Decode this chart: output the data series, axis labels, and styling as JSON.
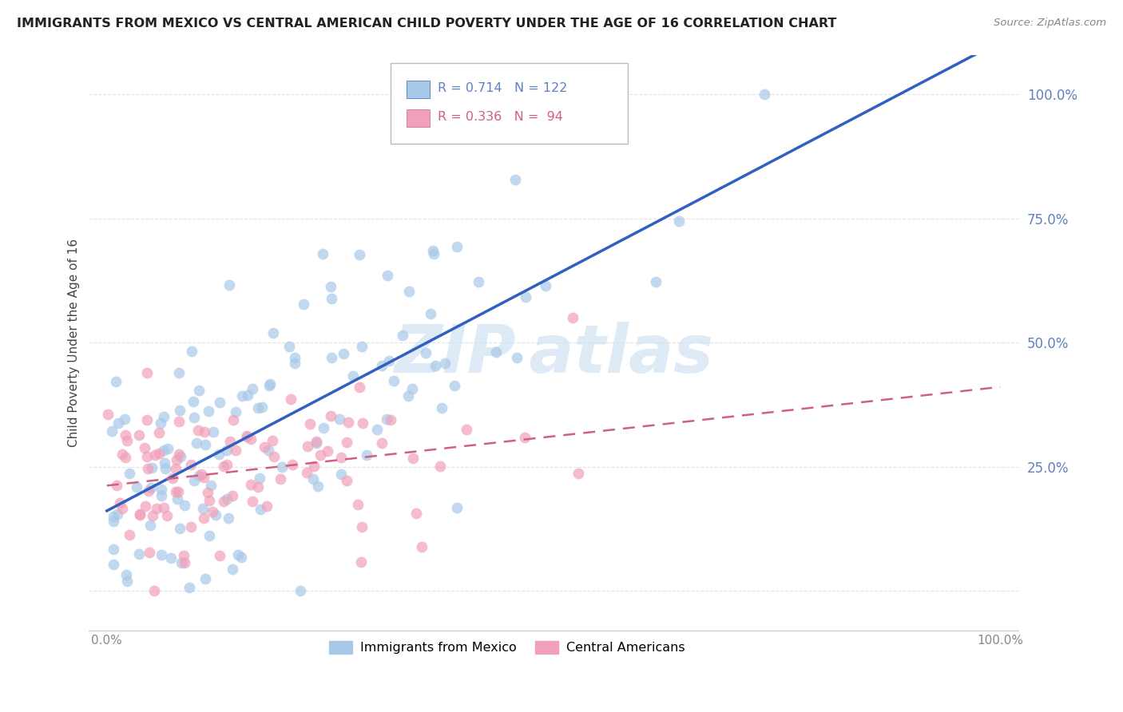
{
  "title": "IMMIGRANTS FROM MEXICO VS CENTRAL AMERICAN CHILD POVERTY UNDER THE AGE OF 16 CORRELATION CHART",
  "source": "Source: ZipAtlas.com",
  "ylabel": "Child Poverty Under the Age of 16",
  "r_mexico": 0.714,
  "n_mexico": 122,
  "r_central": 0.336,
  "n_central": 94,
  "legend_label_1": "Immigrants from Mexico",
  "legend_label_2": "Central Americans",
  "color_mexico": "#A8C8E8",
  "color_central": "#F0A0B8",
  "line_color_mexico": "#3060C0",
  "line_color_central": "#D06080",
  "watermark_color": "#C8DFF0",
  "background_color": "#FFFFFF",
  "grid_color": "#DDDDDD",
  "ytick_color": "#6080C0",
  "title_color": "#222222",
  "source_color": "#888888",
  "ylabel_color": "#444444"
}
